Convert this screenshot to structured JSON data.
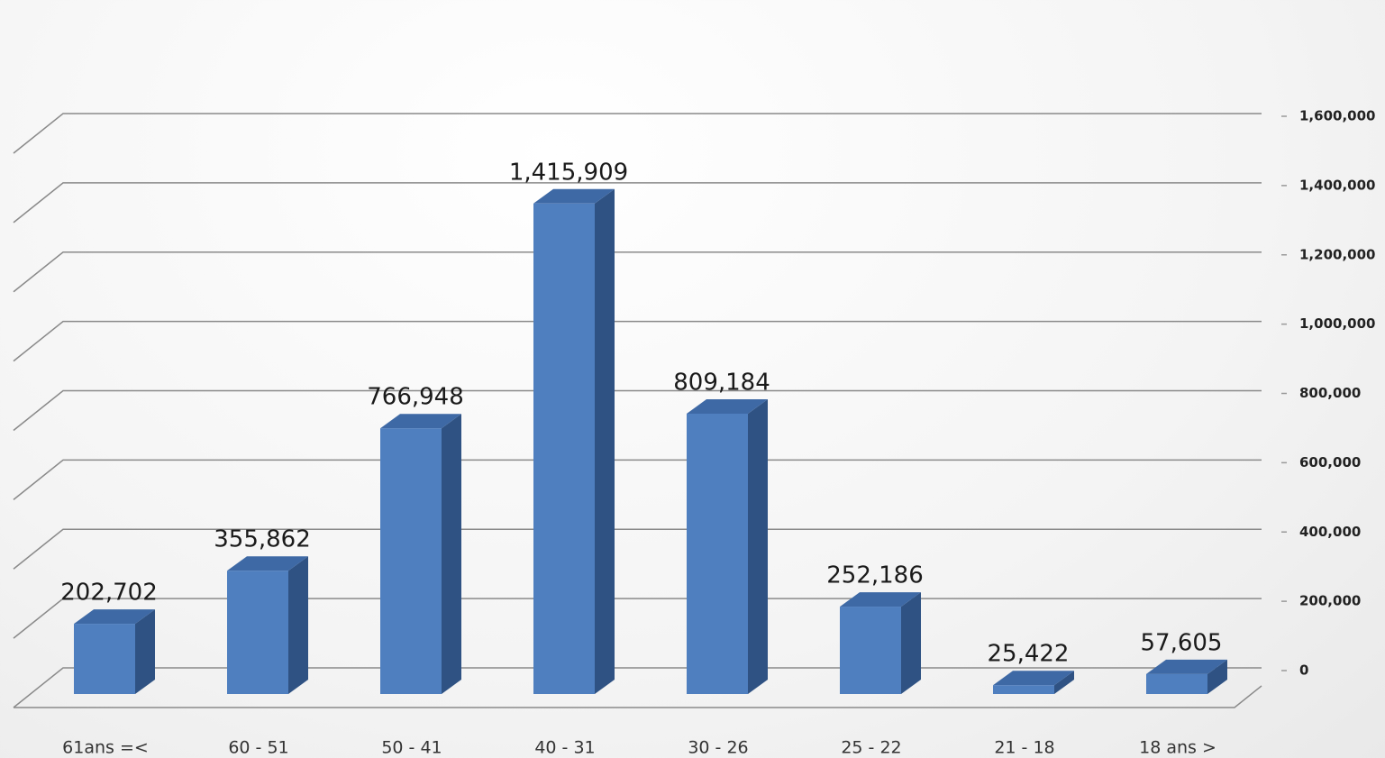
{
  "chart_data": {
    "type": "bar3d",
    "categories": [
      "61ans =<",
      "60 - 51",
      "50 - 41",
      "40 - 31",
      "30 - 26",
      "25 - 22",
      "21 - 18",
      "18 ans >"
    ],
    "values": [
      202702,
      355862,
      766948,
      1415909,
      809184,
      252186,
      25422,
      57605
    ],
    "value_labels": [
      "202,702",
      "355,862",
      "766,948",
      "1,415,909",
      "809,184",
      "252,186",
      "25,422",
      "57,605"
    ],
    "color": "#4f7fbf",
    "ylim": [
      0,
      1600000
    ],
    "yticks": [
      {
        "value": 0,
        "label": "0"
      },
      {
        "value": 200000,
        "label": "200,000"
      },
      {
        "value": 400000,
        "label": "400,000"
      },
      {
        "value": 600000,
        "label": "600,000"
      },
      {
        "value": 800000,
        "label": "800,000"
      },
      {
        "value": 1000000,
        "label": "1,000,000"
      },
      {
        "value": 1200000,
        "label": "1,200,000"
      },
      {
        "value": 1400000,
        "label": "1,400,000"
      },
      {
        "value": 1600000,
        "label": "1,600,000"
      }
    ],
    "grid": true
  }
}
